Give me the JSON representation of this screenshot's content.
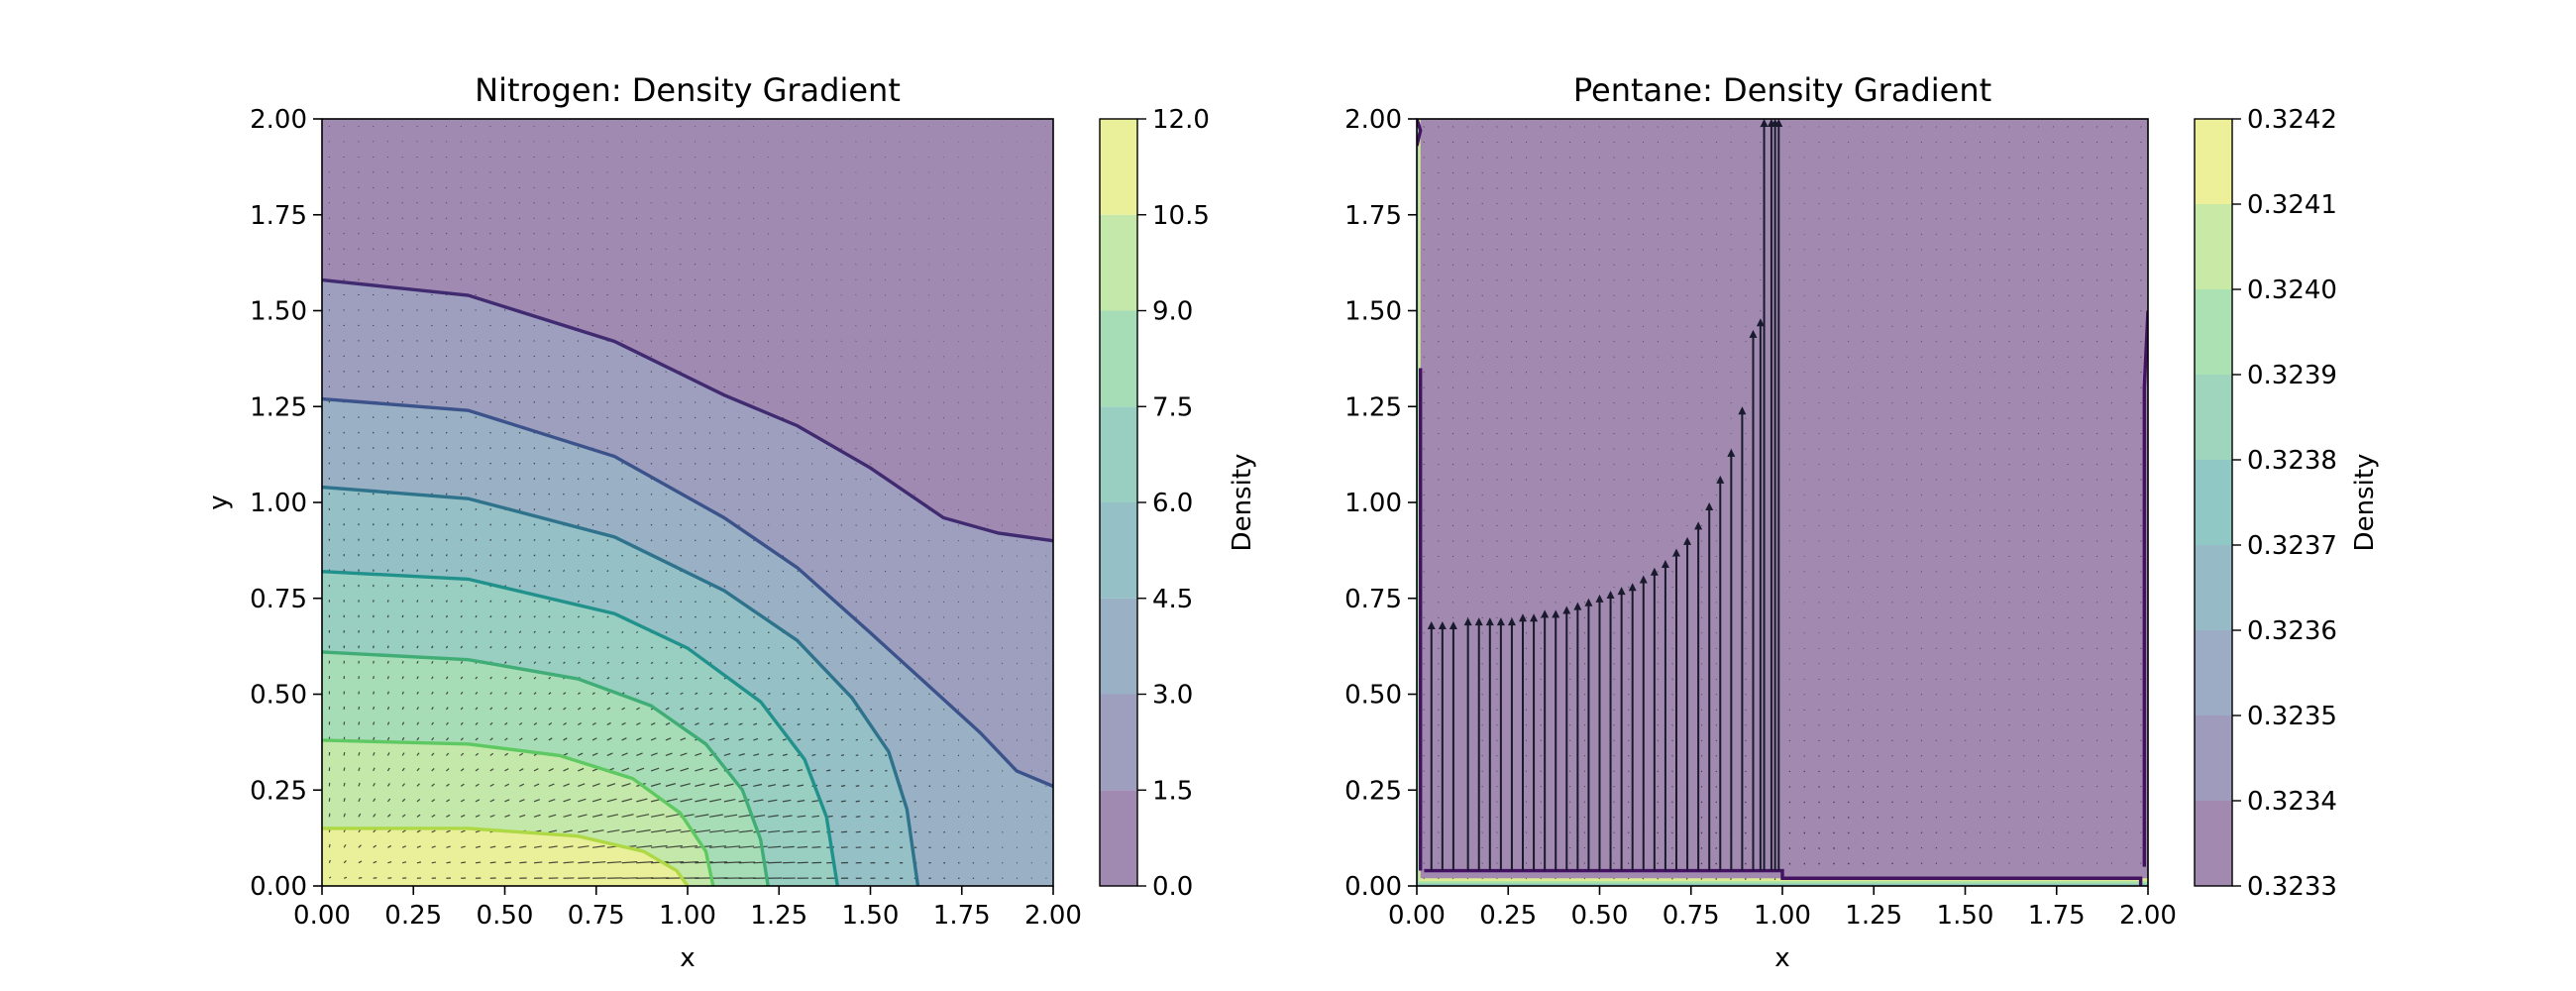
{
  "chart_data": [
    {
      "type": "contour",
      "title": "Nitrogen: Density Gradient",
      "xlabel": "x",
      "ylabel": "y",
      "xlim": [
        0,
        2
      ],
      "ylim": [
        0,
        2
      ],
      "xticks": [
        "0.00",
        "0.25",
        "0.50",
        "0.75",
        "1.00",
        "1.25",
        "1.50",
        "1.75",
        "2.00"
      ],
      "yticks": [
        "0.00",
        "0.25",
        "0.50",
        "0.75",
        "1.00",
        "1.25",
        "1.50",
        "1.75",
        "2.00"
      ],
      "colorbar": {
        "label": "Density",
        "levels": [
          0.0,
          1.5,
          3.0,
          4.5,
          6.0,
          7.5,
          9.0,
          10.5,
          12.0
        ],
        "ticks": [
          "0.0",
          "1.5",
          "3.0",
          "4.5",
          "6.0",
          "7.5",
          "9.0",
          "10.5",
          "12.0"
        ]
      },
      "contour_lines": [
        {
          "level": 1.5,
          "points": [
            [
              0.0,
              1.58
            ],
            [
              0.4,
              1.54
            ],
            [
              0.8,
              1.42
            ],
            [
              1.1,
              1.28
            ],
            [
              1.3,
              1.2
            ],
            [
              1.5,
              1.09
            ],
            [
              1.7,
              0.96
            ],
            [
              1.85,
              0.92
            ],
            [
              2.0,
              0.9
            ]
          ]
        },
        {
          "level": 3.0,
          "points": [
            [
              0.0,
              1.27
            ],
            [
              0.4,
              1.24
            ],
            [
              0.8,
              1.12
            ],
            [
              1.1,
              0.96
            ],
            [
              1.3,
              0.83
            ],
            [
              1.5,
              0.66
            ],
            [
              1.65,
              0.53
            ],
            [
              1.8,
              0.4
            ],
            [
              1.9,
              0.3
            ],
            [
              2.0,
              0.26
            ]
          ]
        },
        {
          "level": 4.5,
          "points": [
            [
              0.0,
              1.04
            ],
            [
              0.4,
              1.01
            ],
            [
              0.8,
              0.91
            ],
            [
              1.1,
              0.77
            ],
            [
              1.3,
              0.64
            ],
            [
              1.45,
              0.49
            ],
            [
              1.55,
              0.35
            ],
            [
              1.6,
              0.2
            ],
            [
              1.63,
              0.0
            ]
          ]
        },
        {
          "level": 6.0,
          "points": [
            [
              0.0,
              0.82
            ],
            [
              0.4,
              0.8
            ],
            [
              0.8,
              0.71
            ],
            [
              1.0,
              0.62
            ],
            [
              1.2,
              0.48
            ],
            [
              1.32,
              0.33
            ],
            [
              1.38,
              0.18
            ],
            [
              1.41,
              0.0
            ]
          ]
        },
        {
          "level": 7.5,
          "points": [
            [
              0.0,
              0.61
            ],
            [
              0.4,
              0.59
            ],
            [
              0.7,
              0.54
            ],
            [
              0.9,
              0.47
            ],
            [
              1.05,
              0.37
            ],
            [
              1.15,
              0.25
            ],
            [
              1.2,
              0.12
            ],
            [
              1.22,
              0.0
            ]
          ]
        },
        {
          "level": 9.0,
          "points": [
            [
              0.0,
              0.38
            ],
            [
              0.4,
              0.37
            ],
            [
              0.65,
              0.34
            ],
            [
              0.85,
              0.28
            ],
            [
              0.98,
              0.19
            ],
            [
              1.05,
              0.09
            ],
            [
              1.07,
              0.0
            ]
          ]
        },
        {
          "level": 10.5,
          "points": [
            [
              0.0,
              0.15
            ],
            [
              0.4,
              0.15
            ],
            [
              0.7,
              0.13
            ],
            [
              0.88,
              0.09
            ],
            [
              0.97,
              0.04
            ],
            [
              1.0,
              0.0
            ]
          ]
        }
      ]
    },
    {
      "type": "contour",
      "title": "Pentane: Density Gradient",
      "xlabel": "x",
      "ylabel": "",
      "xlim": [
        0,
        2
      ],
      "ylim": [
        0,
        2
      ],
      "xticks": [
        "0.00",
        "0.25",
        "0.50",
        "0.75",
        "1.00",
        "1.25",
        "1.50",
        "1.75",
        "2.00"
      ],
      "yticks": [
        "0.00",
        "0.25",
        "0.50",
        "0.75",
        "1.00",
        "1.25",
        "1.50",
        "1.75",
        "2.00"
      ],
      "colorbar": {
        "label": "Density",
        "levels": [
          0.3233,
          0.3234,
          0.3235,
          0.3236,
          0.3237,
          0.3238,
          0.3239,
          0.324,
          0.3241,
          0.3242
        ],
        "ticks": [
          "0.3233",
          "0.3234",
          "0.3235",
          "0.3236",
          "0.3237",
          "0.3238",
          "0.3239",
          "0.3240",
          "0.3241",
          "0.3242"
        ]
      },
      "contour_lines": [
        {
          "level": 0.3234,
          "points": [
            [
              0.02,
              0.04
            ],
            [
              1.0,
              0.04
            ],
            [
              1.0,
              0.02
            ],
            [
              1.98,
              0.02
            ],
            [
              1.98,
              0.0
            ]
          ]
        },
        {
          "level": 0.3234,
          "points": [
            [
              0.01,
              0.04
            ],
            [
              0.01,
              0.9
            ],
            [
              0.01,
              1.35
            ]
          ]
        },
        {
          "level": 0.3234,
          "points": [
            [
              0.0,
              1.93
            ],
            [
              0.01,
              1.97
            ],
            [
              0.0,
              2.0
            ]
          ]
        },
        {
          "level": 0.3234,
          "points": [
            [
              2.0,
              1.5
            ],
            [
              1.99,
              1.3
            ],
            [
              1.99,
              0.05
            ]
          ]
        }
      ],
      "vertical_arrows": [
        {
          "x": 0.04,
          "top": 0.69
        },
        {
          "x": 0.07,
          "top": 0.69
        },
        {
          "x": 0.1,
          "top": 0.69
        },
        {
          "x": 0.14,
          "top": 0.7
        },
        {
          "x": 0.17,
          "top": 0.7
        },
        {
          "x": 0.2,
          "top": 0.7
        },
        {
          "x": 0.23,
          "top": 0.7
        },
        {
          "x": 0.26,
          "top": 0.7
        },
        {
          "x": 0.29,
          "top": 0.71
        },
        {
          "x": 0.32,
          "top": 0.71
        },
        {
          "x": 0.35,
          "top": 0.72
        },
        {
          "x": 0.38,
          "top": 0.72
        },
        {
          "x": 0.41,
          "top": 0.73
        },
        {
          "x": 0.44,
          "top": 0.74
        },
        {
          "x": 0.47,
          "top": 0.75
        },
        {
          "x": 0.5,
          "top": 0.76
        },
        {
          "x": 0.53,
          "top": 0.77
        },
        {
          "x": 0.56,
          "top": 0.78
        },
        {
          "x": 0.59,
          "top": 0.79
        },
        {
          "x": 0.62,
          "top": 0.81
        },
        {
          "x": 0.65,
          "top": 0.83
        },
        {
          "x": 0.68,
          "top": 0.85
        },
        {
          "x": 0.71,
          "top": 0.88
        },
        {
          "x": 0.74,
          "top": 0.91
        },
        {
          "x": 0.77,
          "top": 0.95
        },
        {
          "x": 0.8,
          "top": 1.0
        },
        {
          "x": 0.83,
          "top": 1.07
        },
        {
          "x": 0.86,
          "top": 1.14
        },
        {
          "x": 0.89,
          "top": 1.25
        },
        {
          "x": 0.92,
          "top": 1.45
        },
        {
          "x": 0.94,
          "top": 1.48
        },
        {
          "x": 0.95,
          "top": 2.0
        },
        {
          "x": 0.97,
          "top": 2.0
        },
        {
          "x": 0.98,
          "top": 2.0
        },
        {
          "x": 0.99,
          "top": 2.0
        }
      ]
    }
  ]
}
